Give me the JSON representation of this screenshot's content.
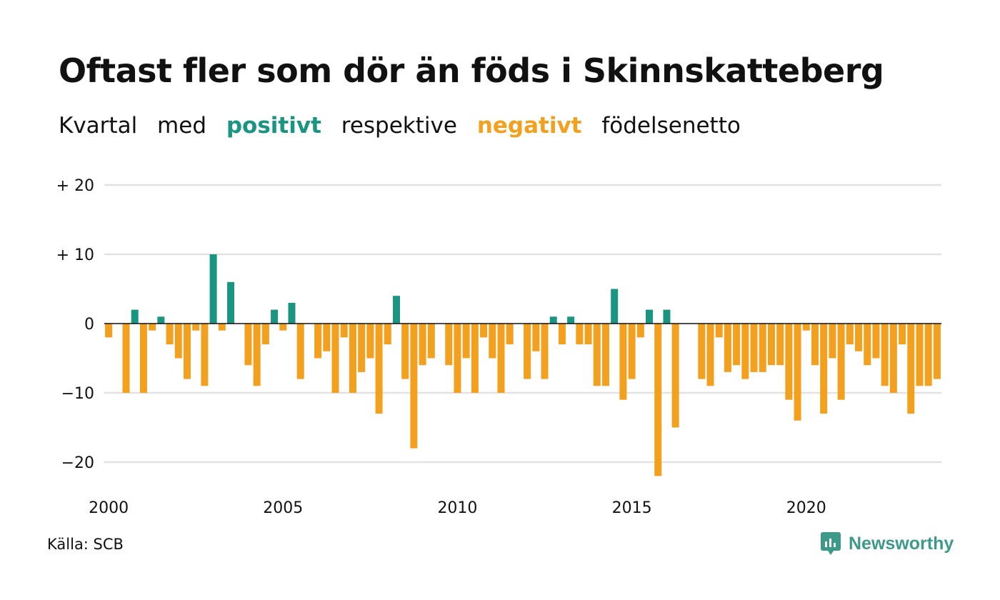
{
  "title": "Oftast fler som dör än föds i Skinnskatteberg",
  "subtitle": {
    "w1": "Kvartal",
    "w2": "med",
    "w3": "positivt",
    "w4": "respektive",
    "w5": "negativt",
    "w6": "födelsenetto"
  },
  "source": "Källa: SCB",
  "brand": "Newsworthy",
  "colors": {
    "positive": "#1a9582",
    "negative": "#f4a01f",
    "grid": "#e2e2e2"
  },
  "chart_data": {
    "type": "bar",
    "title": "Oftast fler som dör än föds i Skinnskatteberg",
    "xlabel": "",
    "ylabel": "",
    "ylim": [
      -24,
      20
    ],
    "yticks": [
      20,
      10,
      0,
      -10,
      -20
    ],
    "ytick_labels": [
      "+ 20",
      "+ 10",
      "0",
      "−10",
      "−20"
    ],
    "xticks": [
      2000,
      2005,
      2010,
      2015,
      2020
    ],
    "xtick_labels": [
      "2000",
      "2005",
      "2010",
      "2015",
      "2020"
    ],
    "grid": true,
    "x_start": "2000 Q1",
    "x_end": "2023 Q4",
    "categories": [
      "2000 Q1",
      "2000 Q2",
      "2000 Q3",
      "2000 Q4",
      "2001 Q1",
      "2001 Q2",
      "2001 Q3",
      "2001 Q4",
      "2002 Q1",
      "2002 Q2",
      "2002 Q3",
      "2002 Q4",
      "2003 Q1",
      "2003 Q2",
      "2003 Q3",
      "2003 Q4",
      "2004 Q1",
      "2004 Q2",
      "2004 Q3",
      "2004 Q4",
      "2005 Q1",
      "2005 Q2",
      "2005 Q3",
      "2005 Q4",
      "2006 Q1",
      "2006 Q2",
      "2006 Q3",
      "2006 Q4",
      "2007 Q1",
      "2007 Q2",
      "2007 Q3",
      "2007 Q4",
      "2008 Q1",
      "2008 Q2",
      "2008 Q3",
      "2008 Q4",
      "2009 Q1",
      "2009 Q2",
      "2009 Q3",
      "2009 Q4",
      "2010 Q1",
      "2010 Q2",
      "2010 Q3",
      "2010 Q4",
      "2011 Q1",
      "2011 Q2",
      "2011 Q3",
      "2011 Q4",
      "2012 Q1",
      "2012 Q2",
      "2012 Q3",
      "2012 Q4",
      "2013 Q1",
      "2013 Q2",
      "2013 Q3",
      "2013 Q4",
      "2014 Q1",
      "2014 Q2",
      "2014 Q3",
      "2014 Q4",
      "2015 Q1",
      "2015 Q2",
      "2015 Q3",
      "2015 Q4",
      "2016 Q1",
      "2016 Q2",
      "2016 Q3",
      "2016 Q4",
      "2017 Q1",
      "2017 Q2",
      "2017 Q3",
      "2017 Q4",
      "2018 Q1",
      "2018 Q2",
      "2018 Q3",
      "2018 Q4",
      "2019 Q1",
      "2019 Q2",
      "2019 Q3",
      "2019 Q4",
      "2020 Q1",
      "2020 Q2",
      "2020 Q3",
      "2020 Q4",
      "2021 Q1",
      "2021 Q2",
      "2021 Q3",
      "2021 Q4",
      "2022 Q1",
      "2022 Q2",
      "2022 Q3",
      "2022 Q4",
      "2023 Q1",
      "2023 Q2",
      "2023 Q3",
      "2023 Q4"
    ],
    "values": [
      -2,
      0,
      -10,
      2,
      -10,
      -1,
      1,
      -3,
      -5,
      -8,
      -1,
      -9,
      10,
      -1,
      6,
      0,
      -6,
      -9,
      -3,
      2,
      -1,
      3,
      -8,
      0,
      -5,
      -4,
      -10,
      -2,
      -10,
      -7,
      -5,
      -13,
      -3,
      4,
      -8,
      -18,
      -6,
      -5,
      0,
      -6,
      -10,
      -5,
      -10,
      -2,
      -5,
      -10,
      -3,
      0,
      -8,
      -4,
      -8,
      1,
      -3,
      1,
      -3,
      -3,
      -9,
      -9,
      5,
      -11,
      -8,
      -2,
      2,
      -22,
      2,
      -15,
      0,
      0,
      -8,
      -9,
      -2,
      -7,
      -6,
      -8,
      -7,
      -7,
      -6,
      -6,
      -11,
      -14,
      -1,
      -6,
      -13,
      -5,
      -11,
      -3,
      -4,
      -6,
      -5,
      -9,
      -10,
      -3,
      -13,
      -9,
      -9,
      -8
    ]
  }
}
